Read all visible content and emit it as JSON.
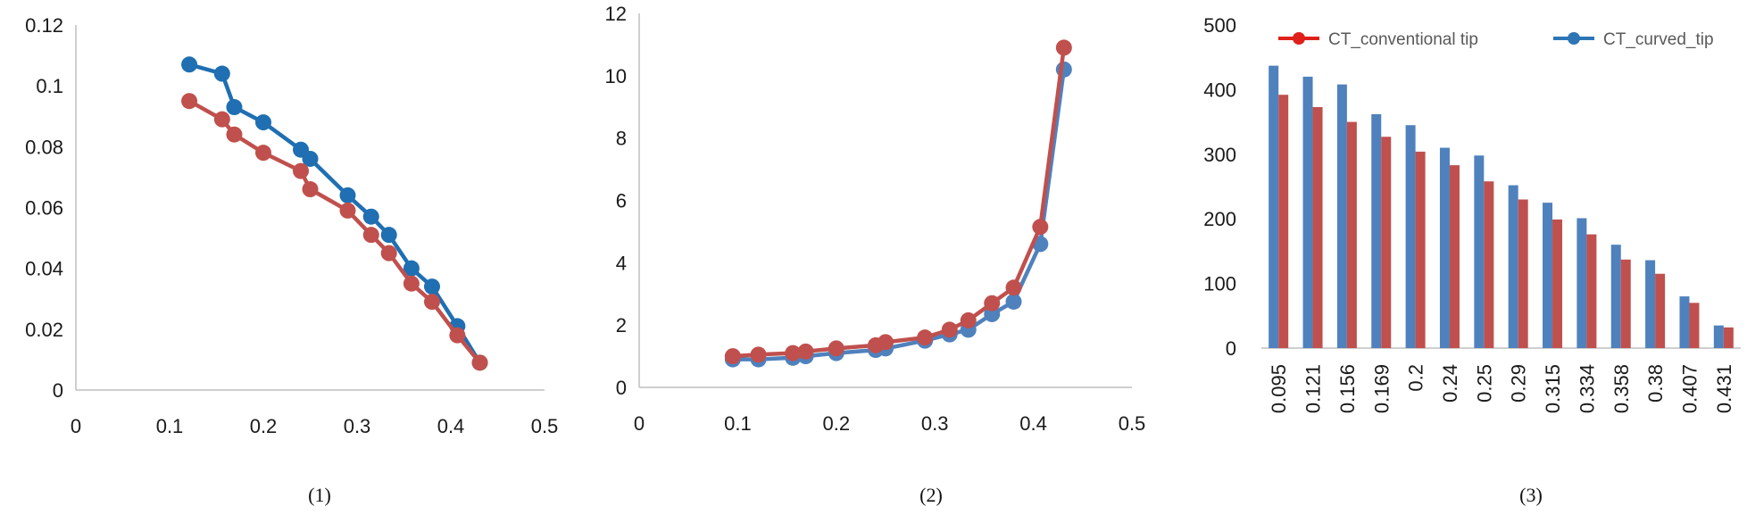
{
  "colors": {
    "red": "#c0504d",
    "blue": "#1f6fb2",
    "red_bar": "#c0504d",
    "blue_bar": "#4f81bd",
    "axis": "#bfbfbf",
    "legend_red": "#e0201a",
    "legend_blue": "#2e75b6"
  },
  "chart_data": [
    {
      "type": "line",
      "caption": "(1)",
      "xlim": [
        0,
        0.5
      ],
      "ylim": [
        0,
        0.12
      ],
      "xticks": [
        "0",
        "0.1",
        "0.2",
        "0.3",
        "0.4",
        "0.5"
      ],
      "yticks": [
        "0",
        "0.02",
        "0.04",
        "0.06",
        "0.08",
        "0.1",
        "0.12"
      ],
      "series": [
        {
          "color": "#1f6fb2",
          "x": [
            0.121,
            0.156,
            0.169,
            0.2,
            0.24,
            0.25,
            0.29,
            0.315,
            0.334,
            0.358,
            0.38,
            0.407,
            0.431
          ],
          "y": [
            0.107,
            0.104,
            0.093,
            0.088,
            0.079,
            0.076,
            0.064,
            0.057,
            0.051,
            0.04,
            0.034,
            0.021,
            0.009
          ]
        },
        {
          "color": "#c0504d",
          "x": [
            0.121,
            0.156,
            0.169,
            0.2,
            0.24,
            0.25,
            0.29,
            0.315,
            0.334,
            0.358,
            0.38,
            0.407,
            0.431
          ],
          "y": [
            0.095,
            0.089,
            0.084,
            0.078,
            0.072,
            0.066,
            0.059,
            0.051,
            0.045,
            0.035,
            0.029,
            0.018,
            0.009
          ]
        }
      ]
    },
    {
      "type": "line",
      "caption": "(2)",
      "xlim": [
        0,
        0.5
      ],
      "ylim": [
        0,
        12
      ],
      "xticks": [
        "0",
        "0.1",
        "0.2",
        "0.3",
        "0.4",
        "0.5"
      ],
      "yticks": [
        "0",
        "2",
        "4",
        "6",
        "8",
        "10",
        "12"
      ],
      "series": [
        {
          "color": "#4f81bd",
          "x": [
            0.095,
            0.121,
            0.156,
            0.169,
            0.2,
            0.24,
            0.25,
            0.29,
            0.315,
            0.334,
            0.358,
            0.38,
            0.407,
            0.431
          ],
          "y": [
            0.9,
            0.9,
            0.95,
            1.0,
            1.1,
            1.2,
            1.25,
            1.5,
            1.7,
            1.85,
            2.35,
            2.75,
            4.6,
            10.2
          ]
        },
        {
          "color": "#c0504d",
          "x": [
            0.095,
            0.121,
            0.156,
            0.169,
            0.2,
            0.24,
            0.25,
            0.29,
            0.315,
            0.334,
            0.358,
            0.38,
            0.407,
            0.431
          ],
          "y": [
            1.0,
            1.05,
            1.1,
            1.15,
            1.25,
            1.35,
            1.45,
            1.6,
            1.85,
            2.15,
            2.7,
            3.2,
            5.15,
            10.9
          ]
        }
      ]
    },
    {
      "type": "bar",
      "caption": "(3)",
      "ylim": [
        0,
        500
      ],
      "yticks": [
        "0",
        "100",
        "200",
        "300",
        "400",
        "500"
      ],
      "categories": [
        "0.095",
        "0.121",
        "0.156",
        "0.169",
        "0.2",
        "0.24",
        "0.25",
        "0.29",
        "0.315",
        "0.334",
        "0.358",
        "0.38",
        "0.407",
        "0.431"
      ],
      "legend": [
        "CT_conventional tip",
        "CT_curved_tip"
      ],
      "series": [
        {
          "name": "CT_curved_tip",
          "color": "#4f81bd",
          "values": [
            437,
            420,
            408,
            362,
            345,
            310,
            298,
            252,
            225,
            201,
            160,
            136,
            80,
            35
          ]
        },
        {
          "name": "CT_conventional tip",
          "color": "#c0504d",
          "values": [
            392,
            373,
            350,
            327,
            304,
            283,
            258,
            230,
            199,
            176,
            137,
            115,
            70,
            32
          ]
        }
      ]
    }
  ]
}
